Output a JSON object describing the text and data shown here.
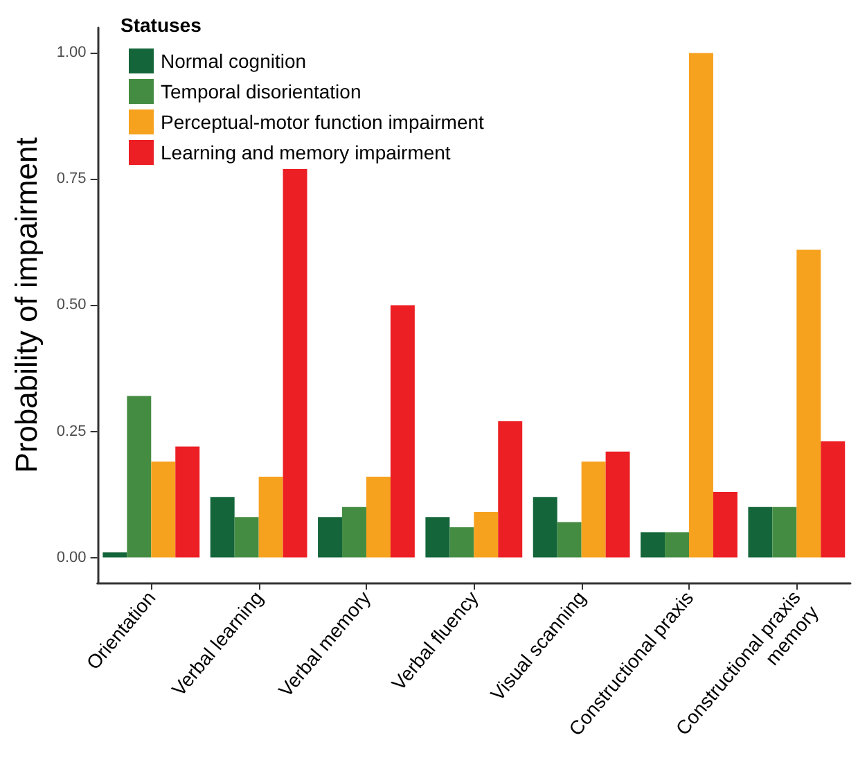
{
  "chart_data": {
    "type": "bar",
    "ylabel": "Probability of impairment",
    "legend_title": "Statuses",
    "categories": [
      "Orientation",
      "Verbal learning",
      "Verbal memory",
      "Verbal fluency",
      "Visual scanning",
      "Constructional praxis",
      "Constructional praxis\nmemory"
    ],
    "series": [
      {
        "name": "Normal cognition",
        "color": "#14663a",
        "values": [
          0.01,
          0.12,
          0.08,
          0.08,
          0.12,
          0.05,
          0.1
        ]
      },
      {
        "name": "Temporal disorientation",
        "color": "#448c42",
        "values": [
          0.32,
          0.08,
          0.1,
          0.06,
          0.07,
          0.05,
          0.1
        ]
      },
      {
        "name": "Perceptual-motor function impairment",
        "color": "#f6a21e",
        "values": [
          0.19,
          0.16,
          0.16,
          0.09,
          0.19,
          1.0,
          0.61
        ]
      },
      {
        "name": "Learning and memory impairment",
        "color": "#ec1f24",
        "values": [
          0.22,
          0.77,
          0.5,
          0.27,
          0.21,
          0.13,
          0.23
        ]
      }
    ],
    "ylim": [
      -0.05,
      1.05
    ],
    "yticks": [
      {
        "value": 0,
        "label": "0.00"
      },
      {
        "value": 0.25,
        "label": "0.25"
      },
      {
        "value": 0.5,
        "label": "0.50"
      },
      {
        "value": 0.75,
        "label": "0.75"
      },
      {
        "value": 1,
        "label": "1.00"
      }
    ],
    "grid": false,
    "legend": "top left"
  }
}
